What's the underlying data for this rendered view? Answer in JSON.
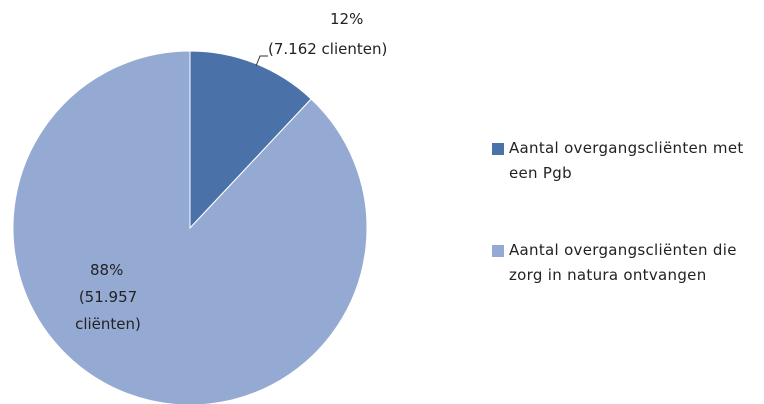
{
  "chart_data": {
    "type": "pie",
    "categories": [
      "Aantal overgangscliënten met een Pgb",
      "Aantal overgangscliënten die zorg in natura ontvangen"
    ],
    "values": [
      12,
      88
    ],
    "value_labels": [
      "12%",
      "88%"
    ],
    "counts": [
      7162,
      51957
    ],
    "count_labels": [
      "(7.162 clienten)",
      "(51.957 cliënten)"
    ],
    "colors": [
      "#4a72a8",
      "#95aad3"
    ],
    "legend": "right"
  }
}
